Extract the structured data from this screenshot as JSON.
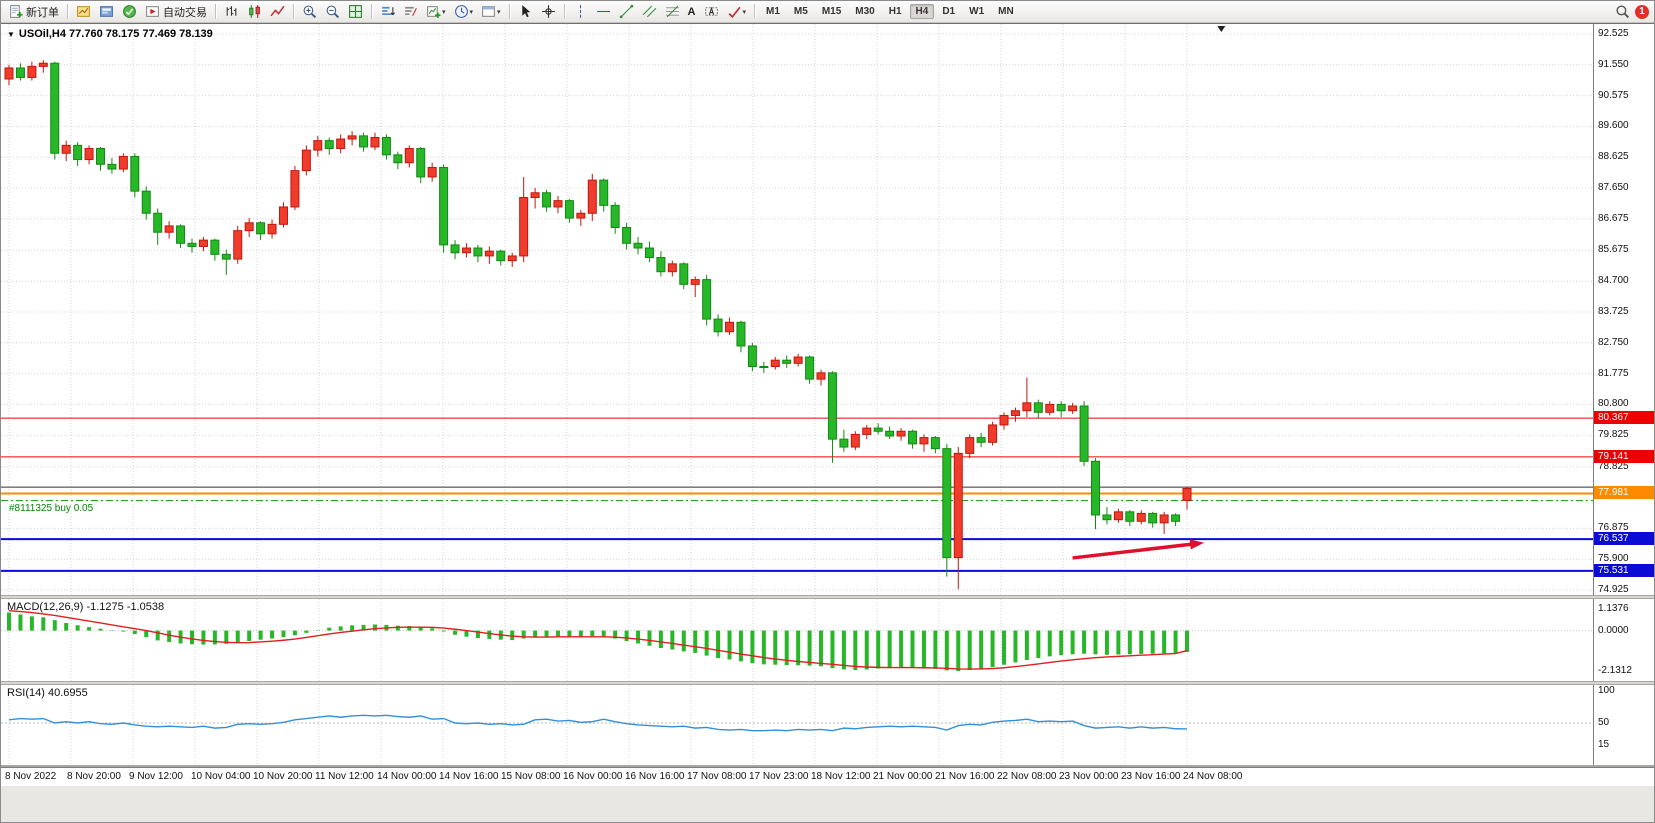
{
  "toolbar": {
    "items": [
      {
        "name": "new-order",
        "icon": "new-order",
        "label": "新订单"
      },
      {
        "sep": true
      },
      {
        "name": "new-chart",
        "icon": "new-chart"
      },
      {
        "name": "profiles",
        "icon": "profiles"
      },
      {
        "name": "market-watch",
        "icon": "market-watch"
      },
      {
        "name": "autotrading",
        "icon": "autotrading",
        "label": "自动交易"
      },
      {
        "sep": true
      },
      {
        "name": "bar-chart-mode",
        "icon": "bar-chart"
      },
      {
        "name": "candlestick-mode",
        "icon": "candles"
      },
      {
        "name": "line-chart-mode",
        "icon": "line-chart"
      },
      {
        "sep": true
      },
      {
        "name": "zoom-in",
        "icon": "zoom-in"
      },
      {
        "name": "zoom-out",
        "icon": "zoom-out"
      },
      {
        "name": "tile-windows",
        "icon": "tile"
      },
      {
        "sep": true
      },
      {
        "name": "indicators-list",
        "icon": "sorted-bars"
      },
      {
        "name": "objects-list",
        "icon": "indicator-list"
      },
      {
        "name": "add-indicator",
        "icon": "add-indicator",
        "caret": true
      },
      {
        "name": "periods",
        "icon": "clock",
        "caret": true
      },
      {
        "name": "templates",
        "icon": "template",
        "caret": true
      },
      {
        "sep": true
      },
      {
        "name": "cursor",
        "icon": "cursor"
      },
      {
        "name": "crosshair",
        "icon": "crosshair"
      },
      {
        "sep": true
      },
      {
        "name": "vertical-line",
        "icon": "vline"
      },
      {
        "name": "horizontal-line",
        "icon": "hline"
      },
      {
        "name": "trendline",
        "icon": "trendline"
      },
      {
        "name": "equidistant-channel",
        "icon": "channel"
      },
      {
        "name": "fibonacci-retracement",
        "icon": "fibo"
      },
      {
        "name": "text",
        "text": "A"
      },
      {
        "name": "text-label",
        "icon": "label"
      },
      {
        "name": "arrow-objects",
        "icon": "arrows",
        "caret": true
      },
      {
        "sep": true
      }
    ],
    "timeframes": [
      "M1",
      "M5",
      "M15",
      "M30",
      "H1",
      "H4",
      "D1",
      "W1",
      "MN"
    ],
    "active_timeframe": "H4",
    "notification_count": "1"
  },
  "chart_data": [
    {
      "type": "candlestick",
      "symbol": "USOil",
      "timeframe": "H4",
      "title": "USOil,H4 77.760 78.175 77.469 78.139",
      "ohlc_current": {
        "open": "77.760",
        "high": "78.175",
        "low": "77.469",
        "close": "78.139"
      },
      "y_range": [
        74.925,
        92.525
      ],
      "y_axis_labels": [
        "92.525",
        "91.550",
        "90.575",
        "89.600",
        "88.625",
        "87.650",
        "86.675",
        "85.675",
        "84.700",
        "83.725",
        "82.750",
        "81.775",
        "80.800",
        "79.825",
        "78.825",
        "76.875",
        "75.900",
        "74.925"
      ],
      "x_labels": [
        "8 Nov 2022",
        "8 Nov 20:00",
        "9 Nov 12:00",
        "10 Nov 04:00",
        "10 Nov 20:00",
        "11 Nov 12:00",
        "14 Nov 00:00",
        "14 Nov 16:00",
        "15 Nov 08:00",
        "16 Nov 00:00",
        "16 Nov 16:00",
        "17 Nov 08:00",
        "17 Nov 23:00",
        "18 Nov 12:00",
        "21 Nov 00:00",
        "21 Nov 16:00",
        "22 Nov 08:00",
        "23 Nov 00:00",
        "23 Nov 16:00",
        "24 Nov 08:00"
      ],
      "colors": {
        "up": "#ef3c2d",
        "up_stroke": "#c2170b",
        "down": "#28b728",
        "down_stroke": "#128a12"
      },
      "candles": [
        [
          91.1,
          91.55,
          90.9,
          91.45
        ],
        [
          91.45,
          91.6,
          91.05,
          91.15
        ],
        [
          91.15,
          91.65,
          91.05,
          91.5
        ],
        [
          91.5,
          91.7,
          91.3,
          91.6
        ],
        [
          91.6,
          91.65,
          88.55,
          88.75
        ],
        [
          88.75,
          89.15,
          88.5,
          89.0
        ],
        [
          89.0,
          89.1,
          88.35,
          88.55
        ],
        [
          88.55,
          89.0,
          88.4,
          88.9
        ],
        [
          88.9,
          88.95,
          88.2,
          88.4
        ],
        [
          88.4,
          88.6,
          88.1,
          88.25
        ],
        [
          88.25,
          88.75,
          88.15,
          88.65
        ],
        [
          88.65,
          88.75,
          87.35,
          87.55
        ],
        [
          87.55,
          87.7,
          86.65,
          86.85
        ],
        [
          86.85,
          87.0,
          85.85,
          86.25
        ],
        [
          86.25,
          86.6,
          86.05,
          86.45
        ],
        [
          86.45,
          86.5,
          85.75,
          85.9
        ],
        [
          85.9,
          86.05,
          85.6,
          85.8
        ],
        [
          85.8,
          86.1,
          85.65,
          86.0
        ],
        [
          86.0,
          86.05,
          85.35,
          85.55
        ],
        [
          85.55,
          85.7,
          84.9,
          85.4
        ],
        [
          85.4,
          86.45,
          85.25,
          86.3
        ],
        [
          86.3,
          86.7,
          86.1,
          86.55
        ],
        [
          86.55,
          86.6,
          86.0,
          86.2
        ],
        [
          86.2,
          86.65,
          86.05,
          86.5
        ],
        [
          86.5,
          87.2,
          86.4,
          87.05
        ],
        [
          87.05,
          88.35,
          86.95,
          88.2
        ],
        [
          88.2,
          89.0,
          88.05,
          88.85
        ],
        [
          88.85,
          89.3,
          88.65,
          89.15
        ],
        [
          89.15,
          89.25,
          88.7,
          88.9
        ],
        [
          88.9,
          89.35,
          88.75,
          89.2
        ],
        [
          89.2,
          89.45,
          89.0,
          89.3
        ],
        [
          89.3,
          89.4,
          88.8,
          88.95
        ],
        [
          88.95,
          89.4,
          88.85,
          89.25
        ],
        [
          89.25,
          89.35,
          88.55,
          88.7
        ],
        [
          88.7,
          88.8,
          88.25,
          88.45
        ],
        [
          88.45,
          89.0,
          88.3,
          88.9
        ],
        [
          88.9,
          88.95,
          87.8,
          88.0
        ],
        [
          88.0,
          88.45,
          87.85,
          88.3
        ],
        [
          88.3,
          88.4,
          85.6,
          85.85
        ],
        [
          85.85,
          86.0,
          85.4,
          85.6
        ],
        [
          85.6,
          85.9,
          85.45,
          85.75
        ],
        [
          85.75,
          85.85,
          85.3,
          85.5
        ],
        [
          85.5,
          85.8,
          85.25,
          85.65
        ],
        [
          85.65,
          85.7,
          85.2,
          85.35
        ],
        [
          85.35,
          85.6,
          85.15,
          85.5
        ],
        [
          85.5,
          88.0,
          85.3,
          87.35
        ],
        [
          87.35,
          87.65,
          87.0,
          87.5
        ],
        [
          87.5,
          87.6,
          86.9,
          87.05
        ],
        [
          87.05,
          87.4,
          86.85,
          87.25
        ],
        [
          87.25,
          87.3,
          86.55,
          86.7
        ],
        [
          86.7,
          86.95,
          86.45,
          86.85
        ],
        [
          86.85,
          88.1,
          86.6,
          87.9
        ],
        [
          87.9,
          87.95,
          86.9,
          87.1
        ],
        [
          87.1,
          87.2,
          86.2,
          86.4
        ],
        [
          86.4,
          86.55,
          85.7,
          85.9
        ],
        [
          85.9,
          86.1,
          85.55,
          85.75
        ],
        [
          85.75,
          85.95,
          85.3,
          85.45
        ],
        [
          85.45,
          85.65,
          84.85,
          85.0
        ],
        [
          85.0,
          85.35,
          84.85,
          85.25
        ],
        [
          85.25,
          85.3,
          84.45,
          84.6
        ],
        [
          84.6,
          84.85,
          84.2,
          84.75
        ],
        [
          84.75,
          84.9,
          83.3,
          83.5
        ],
        [
          83.5,
          83.65,
          82.95,
          83.1
        ],
        [
          83.1,
          83.55,
          83.0,
          83.4
        ],
        [
          83.4,
          83.45,
          82.45,
          82.65
        ],
        [
          82.65,
          82.75,
          81.85,
          82.0
        ],
        [
          82.0,
          82.15,
          81.8,
          81.98
        ],
        [
          82.0,
          82.3,
          81.9,
          82.2
        ],
        [
          82.2,
          82.35,
          81.95,
          82.1
        ],
        [
          82.1,
          82.4,
          82.0,
          82.3
        ],
        [
          82.3,
          82.35,
          81.45,
          81.6
        ],
        [
          81.6,
          81.9,
          81.4,
          81.8
        ],
        [
          81.8,
          81.85,
          78.95,
          79.7
        ],
        [
          79.7,
          80.0,
          79.3,
          79.45
        ],
        [
          79.45,
          79.95,
          79.35,
          79.85
        ],
        [
          79.85,
          80.15,
          79.7,
          80.05
        ],
        [
          80.05,
          80.2,
          79.85,
          79.95
        ],
        [
          79.95,
          80.1,
          79.7,
          79.8
        ],
        [
          79.8,
          80.05,
          79.65,
          79.95
        ],
        [
          79.95,
          80.0,
          79.4,
          79.55
        ],
        [
          79.55,
          79.85,
          79.3,
          79.75
        ],
        [
          79.75,
          79.8,
          79.25,
          79.4
        ],
        [
          79.4,
          79.55,
          75.35,
          75.95
        ],
        [
          75.95,
          79.45,
          74.95,
          79.25
        ],
        [
          79.25,
          79.85,
          79.1,
          79.75
        ],
        [
          79.75,
          79.9,
          79.45,
          79.6
        ],
        [
          79.6,
          80.25,
          79.5,
          80.15
        ],
        [
          80.15,
          80.55,
          80.0,
          80.45
        ],
        [
          80.45,
          80.7,
          80.25,
          80.6
        ],
        [
          80.6,
          81.65,
          80.4,
          80.85
        ],
        [
          80.85,
          80.95,
          80.35,
          80.55
        ],
        [
          80.55,
          80.9,
          80.45,
          80.8
        ],
        [
          80.8,
          80.9,
          80.4,
          80.6
        ],
        [
          80.6,
          80.85,
          80.5,
          80.75
        ],
        [
          80.75,
          80.9,
          78.85,
          79.0
        ],
        [
          79.0,
          79.1,
          76.85,
          77.3
        ],
        [
          77.3,
          77.55,
          77.0,
          77.15
        ],
        [
          77.15,
          77.5,
          77.05,
          77.4
        ],
        [
          77.4,
          77.45,
          76.95,
          77.1
        ],
        [
          77.1,
          77.45,
          77.0,
          77.35
        ],
        [
          77.35,
          77.4,
          76.9,
          77.05
        ],
        [
          77.05,
          77.4,
          76.7,
          77.3
        ],
        [
          77.3,
          77.35,
          76.95,
          77.1
        ],
        [
          77.76,
          78.175,
          77.469,
          78.139
        ]
      ],
      "horizontal_lines": [
        {
          "price": 80.367,
          "color": "#ef0000",
          "width": 1,
          "label": "80.367"
        },
        {
          "price": 79.141,
          "color": "#ef0000",
          "width": 1,
          "label": "79.141"
        },
        {
          "price": 78.18,
          "color": "#303030",
          "width": 1,
          "label": null
        },
        {
          "price": 77.981,
          "color": "#ff8a00",
          "width": 2,
          "label": "77.981"
        },
        {
          "price": 76.537,
          "color": "#0b0bd6",
          "width": 2,
          "label": "76.537"
        },
        {
          "price": 75.531,
          "color": "#0b0bd6",
          "width": 2,
          "label": "75.531"
        }
      ],
      "trade_line": {
        "label": "#8111325 buy 0.05",
        "price": 77.755,
        "color": "#009900"
      },
      "arrow_annotation": {
        "from_bar": 93,
        "from_price": 75.94,
        "to_bar": 104.5,
        "to_price": 76.42,
        "color": "#e0102c"
      },
      "shift_marker_bar": 106
    },
    {
      "type": "bar",
      "name": "MACD",
      "label": "MACD(12,26,9) -1.1275 -1.0538",
      "params": "12,26,9",
      "macd_value": "-1.1275",
      "signal_value": "-1.0538",
      "y_axis_labels": [
        "1.1376",
        "0.0000",
        "-2.1312"
      ],
      "y_range": [
        -2.1312,
        1.1376
      ],
      "colors": {
        "histogram": "#28b728",
        "signal": "#e02020"
      },
      "histogram": [
        0.95,
        0.85,
        0.75,
        0.7,
        0.55,
        0.4,
        0.28,
        0.18,
        0.1,
        0.02,
        -0.05,
        -0.18,
        -0.35,
        -0.52,
        -0.6,
        -0.68,
        -0.72,
        -0.74,
        -0.73,
        -0.7,
        -0.64,
        -0.55,
        -0.48,
        -0.42,
        -0.35,
        -0.25,
        -0.12,
        0.02,
        0.15,
        0.22,
        0.28,
        0.3,
        0.32,
        0.3,
        0.26,
        0.24,
        0.18,
        0.12,
        -0.05,
        -0.22,
        -0.32,
        -0.4,
        -0.44,
        -0.48,
        -0.5,
        -0.42,
        -0.35,
        -0.32,
        -0.3,
        -0.33,
        -0.35,
        -0.3,
        -0.33,
        -0.42,
        -0.55,
        -0.68,
        -0.8,
        -0.92,
        -1.0,
        -1.1,
        -1.18,
        -1.32,
        -1.45,
        -1.52,
        -1.62,
        -1.72,
        -1.78,
        -1.8,
        -1.82,
        -1.83,
        -1.85,
        -1.88,
        -1.98,
        -2.05,
        -2.08,
        -2.05,
        -2.0,
        -1.98,
        -1.96,
        -1.97,
        -1.99,
        -2.02,
        -2.1,
        -2.13,
        -2.08,
        -2.02,
        -1.92,
        -1.8,
        -1.68,
        -1.55,
        -1.45,
        -1.36,
        -1.3,
        -1.25,
        -1.22,
        -1.25,
        -1.28,
        -1.26,
        -1.25,
        -1.23,
        -1.22,
        -1.2,
        -1.18,
        -1.1275
      ],
      "signal": [
        1.05,
        1.0,
        0.95,
        0.88,
        0.8,
        0.7,
        0.6,
        0.5,
        0.4,
        0.3,
        0.2,
        0.1,
        0.0,
        -0.12,
        -0.24,
        -0.35,
        -0.44,
        -0.52,
        -0.58,
        -0.62,
        -0.64,
        -0.63,
        -0.6,
        -0.56,
        -0.51,
        -0.45,
        -0.36,
        -0.27,
        -0.18,
        -0.1,
        -0.03,
        0.04,
        0.1,
        0.14,
        0.17,
        0.18,
        0.18,
        0.17,
        0.13,
        0.07,
        0.0,
        -0.08,
        -0.16,
        -0.23,
        -0.29,
        -0.33,
        -0.34,
        -0.34,
        -0.33,
        -0.33,
        -0.33,
        -0.33,
        -0.33,
        -0.35,
        -0.39,
        -0.45,
        -0.52,
        -0.6,
        -0.68,
        -0.77,
        -0.85,
        -0.94,
        -1.04,
        -1.14,
        -1.24,
        -1.33,
        -1.42,
        -1.5,
        -1.57,
        -1.63,
        -1.68,
        -1.73,
        -1.78,
        -1.84,
        -1.89,
        -1.92,
        -1.94,
        -1.95,
        -1.95,
        -1.95,
        -1.96,
        -1.97,
        -1.99,
        -2.02,
        -2.03,
        -2.02,
        -2.0,
        -1.96,
        -1.9,
        -1.83,
        -1.76,
        -1.68,
        -1.61,
        -1.54,
        -1.48,
        -1.43,
        -1.39,
        -1.36,
        -1.33,
        -1.3,
        -1.27,
        -1.24,
        -1.21,
        -1.0538
      ]
    },
    {
      "type": "line",
      "name": "RSI",
      "label": "RSI(14) 40.6955",
      "period": "14",
      "value": "40.6955",
      "y_axis_labels": [
        "100",
        "50",
        "15"
      ],
      "level": 50,
      "y_range": [
        0,
        100
      ],
      "color": "#3390d8",
      "values": [
        55,
        57,
        56,
        57,
        50,
        52,
        50,
        52,
        49,
        48,
        50,
        47,
        45,
        44,
        45,
        44,
        43,
        45,
        42,
        43,
        48,
        49,
        48,
        49,
        51,
        55,
        57,
        59,
        61,
        59,
        61,
        62,
        61,
        62,
        60,
        59,
        61,
        56,
        57,
        50,
        49,
        50,
        48,
        49,
        47,
        48,
        55,
        56,
        53,
        54,
        51,
        52,
        56,
        52,
        49,
        47,
        46,
        45,
        44,
        45,
        42,
        43,
        40,
        39,
        40,
        38,
        38,
        39,
        38,
        40,
        39,
        40,
        38,
        42,
        41,
        43,
        44,
        45,
        44,
        45,
        44,
        43,
        39,
        46,
        48,
        47,
        51,
        53,
        54,
        56,
        52,
        53,
        52,
        53,
        46,
        42,
        43,
        44,
        42,
        44,
        42,
        43,
        41,
        40.6955
      ]
    }
  ]
}
